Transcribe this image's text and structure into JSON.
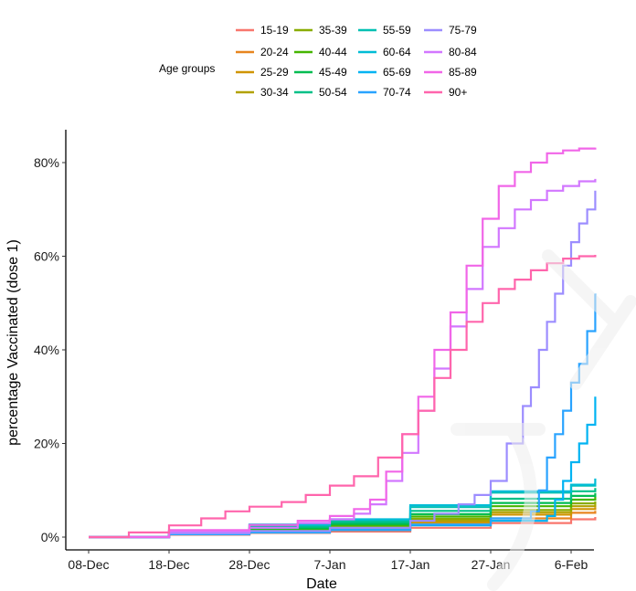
{
  "chart_data": {
    "type": "line",
    "step": true,
    "xlabel": "Date",
    "ylabel": "percentage Vaccinated (dose 1)",
    "x_ticks": [
      "08-Dec",
      "18-Dec",
      "28-Dec",
      "7-Jan",
      "17-Jan",
      "27-Jan",
      "6-Feb"
    ],
    "x_range": [
      "08-Dec",
      "09-Feb"
    ],
    "y_ticks": [
      "0%",
      "20%",
      "40%",
      "60%",
      "80%"
    ],
    "ylim": [
      0,
      88
    ],
    "grid": false,
    "legend": {
      "title": "Age groups",
      "position": "top",
      "ncol": 4
    },
    "series": [
      {
        "name": "15-19",
        "color": "#F8766D",
        "points": [
          [
            "08-Dec",
            0
          ],
          [
            "18-Dec",
            0.5
          ],
          [
            "28-Dec",
            0.9
          ],
          [
            "7-Jan",
            1.2
          ],
          [
            "17-Jan",
            2.0
          ],
          [
            "27-Jan",
            3.0
          ],
          [
            "6-Feb",
            3.8
          ],
          [
            "09-Feb",
            4.3
          ]
        ]
      },
      {
        "name": "20-24",
        "color": "#E7851E",
        "points": [
          [
            "08-Dec",
            0
          ],
          [
            "18-Dec",
            0.6
          ],
          [
            "28-Dec",
            1.1
          ],
          [
            "7-Jan",
            1.5
          ],
          [
            "17-Jan",
            2.6
          ],
          [
            "27-Jan",
            4.0
          ],
          [
            "6-Feb",
            5.2
          ],
          [
            "09-Feb",
            5.6
          ]
        ]
      },
      {
        "name": "25-29",
        "color": "#D09400",
        "points": [
          [
            "08-Dec",
            0
          ],
          [
            "18-Dec",
            0.7
          ],
          [
            "28-Dec",
            1.3
          ],
          [
            "7-Jan",
            1.8
          ],
          [
            "17-Jan",
            3.1
          ],
          [
            "27-Jan",
            4.8
          ],
          [
            "6-Feb",
            6.0
          ],
          [
            "09-Feb",
            6.4
          ]
        ]
      },
      {
        "name": "30-34",
        "color": "#B2A100",
        "points": [
          [
            "08-Dec",
            0
          ],
          [
            "18-Dec",
            0.8
          ],
          [
            "28-Dec",
            1.4
          ],
          [
            "7-Jan",
            2.0
          ],
          [
            "17-Jan",
            3.5
          ],
          [
            "27-Jan",
            5.3
          ],
          [
            "6-Feb",
            6.6
          ],
          [
            "09-Feb",
            7.0
          ]
        ]
      },
      {
        "name": "35-39",
        "color": "#89AC00",
        "points": [
          [
            "08-Dec",
            0
          ],
          [
            "18-Dec",
            0.8
          ],
          [
            "28-Dec",
            1.5
          ],
          [
            "7-Jan",
            2.2
          ],
          [
            "17-Jan",
            3.9
          ],
          [
            "27-Jan",
            5.8
          ],
          [
            "6-Feb",
            7.2
          ],
          [
            "09-Feb",
            7.6
          ]
        ]
      },
      {
        "name": "40-44",
        "color": "#45B500",
        "points": [
          [
            "08-Dec",
            0
          ],
          [
            "18-Dec",
            0.9
          ],
          [
            "28-Dec",
            1.7
          ],
          [
            "7-Jan",
            2.5
          ],
          [
            "17-Jan",
            4.4
          ],
          [
            "27-Jan",
            6.6
          ],
          [
            "6-Feb",
            8.0
          ],
          [
            "09-Feb",
            8.6
          ]
        ]
      },
      {
        "name": "45-49",
        "color": "#00BC51",
        "points": [
          [
            "08-Dec",
            0
          ],
          [
            "18-Dec",
            1.0
          ],
          [
            "28-Dec",
            1.9
          ],
          [
            "7-Jan",
            2.8
          ],
          [
            "17-Jan",
            4.9
          ],
          [
            "27-Jan",
            7.3
          ],
          [
            "6-Feb",
            8.8
          ],
          [
            "09-Feb",
            9.4
          ]
        ]
      },
      {
        "name": "50-54",
        "color": "#00C087",
        "points": [
          [
            "08-Dec",
            0
          ],
          [
            "18-Dec",
            1.1
          ],
          [
            "28-Dec",
            2.2
          ],
          [
            "7-Jan",
            3.2
          ],
          [
            "17-Jan",
            5.6
          ],
          [
            "27-Jan",
            8.2
          ],
          [
            "6-Feb",
            9.8
          ],
          [
            "09-Feb",
            10.5
          ]
        ]
      },
      {
        "name": "55-59",
        "color": "#00C0B2",
        "points": [
          [
            "08-Dec",
            0
          ],
          [
            "18-Dec",
            1.2
          ],
          [
            "28-Dec",
            2.5
          ],
          [
            "7-Jan",
            3.6
          ],
          [
            "17-Jan",
            6.4
          ],
          [
            "27-Jan",
            9.5
          ],
          [
            "6-Feb",
            11.0
          ],
          [
            "09-Feb",
            11.6
          ]
        ]
      },
      {
        "name": "60-64",
        "color": "#00BCD6",
        "points": [
          [
            "08-Dec",
            0
          ],
          [
            "18-Dec",
            1.3
          ],
          [
            "28-Dec",
            2.7
          ],
          [
            "7-Jan",
            3.8
          ],
          [
            "17-Jan",
            6.8
          ],
          [
            "27-Jan",
            9.8
          ],
          [
            "6-Feb",
            11.2
          ],
          [
            "09-Feb",
            12.5
          ]
        ]
      },
      {
        "name": "65-69",
        "color": "#00B3F2",
        "points": [
          [
            "08-Dec",
            0
          ],
          [
            "18-Dec",
            0.6
          ],
          [
            "28-Dec",
            1.0
          ],
          [
            "7-Jan",
            1.5
          ],
          [
            "17-Jan",
            2.5
          ],
          [
            "27-Jan",
            3.5
          ],
          [
            "3-Feb",
            4.5
          ],
          [
            "4-Feb",
            8
          ],
          [
            "5-Feb",
            12
          ],
          [
            "6-Feb",
            16
          ],
          [
            "7-Feb",
            20
          ],
          [
            "8-Feb",
            24
          ],
          [
            "09-Feb",
            30
          ]
        ]
      },
      {
        "name": "70-74",
        "color": "#29A3FF",
        "points": [
          [
            "08-Dec",
            0
          ],
          [
            "18-Dec",
            0.7
          ],
          [
            "28-Dec",
            1.1
          ],
          [
            "7-Jan",
            1.6
          ],
          [
            "17-Jan",
            2.7
          ],
          [
            "27-Jan",
            4.0
          ],
          [
            "1-Feb",
            5.5
          ],
          [
            "2-Feb",
            10
          ],
          [
            "3-Feb",
            17
          ],
          [
            "4-Feb",
            22
          ],
          [
            "5-Feb",
            27
          ],
          [
            "6-Feb",
            33
          ],
          [
            "7-Feb",
            37
          ],
          [
            "8-Feb",
            44
          ],
          [
            "09-Feb",
            52
          ]
        ]
      },
      {
        "name": "75-79",
        "color": "#9C8DFF",
        "points": [
          [
            "08-Dec",
            0
          ],
          [
            "18-Dec",
            0.8
          ],
          [
            "28-Dec",
            1.3
          ],
          [
            "7-Jan",
            2.0
          ],
          [
            "17-Jan",
            3.5
          ],
          [
            "20-Jan",
            5
          ],
          [
            "23-Jan",
            7
          ],
          [
            "25-Jan",
            9
          ],
          [
            "27-Jan",
            12
          ],
          [
            "29-Jan",
            20
          ],
          [
            "31-Jan",
            28
          ],
          [
            "1-Feb",
            32
          ],
          [
            "2-Feb",
            40
          ],
          [
            "3-Feb",
            46
          ],
          [
            "4-Feb",
            52
          ],
          [
            "5-Feb",
            58
          ],
          [
            "6-Feb",
            63
          ],
          [
            "7-Feb",
            67
          ],
          [
            "8-Feb",
            70
          ],
          [
            "09-Feb",
            74
          ]
        ]
      },
      {
        "name": "80-84",
        "color": "#D277FF",
        "points": [
          [
            "08-Dec",
            0
          ],
          [
            "18-Dec",
            1.2
          ],
          [
            "28-Dec",
            2.0
          ],
          [
            "3-Jan",
            3
          ],
          [
            "7-Jan",
            3.8
          ],
          [
            "10-Jan",
            5
          ],
          [
            "12-Jan",
            7
          ],
          [
            "14-Jan",
            12
          ],
          [
            "16-Jan",
            18
          ],
          [
            "18-Jan",
            27
          ],
          [
            "20-Jan",
            36
          ],
          [
            "22-Jan",
            45
          ],
          [
            "24-Jan",
            53
          ],
          [
            "26-Jan",
            62
          ],
          [
            "28-Jan",
            66
          ],
          [
            "30-Jan",
            70
          ],
          [
            "1-Feb",
            72
          ],
          [
            "3-Feb",
            74
          ],
          [
            "5-Feb",
            75
          ],
          [
            "7-Feb",
            76
          ],
          [
            "09-Feb",
            76.5
          ]
        ]
      },
      {
        "name": "85-89",
        "color": "#F166E8",
        "points": [
          [
            "08-Dec",
            0
          ],
          [
            "18-Dec",
            1.5
          ],
          [
            "28-Dec",
            2.6
          ],
          [
            "3-Jan",
            3.5
          ],
          [
            "7-Jan",
            4.5
          ],
          [
            "10-Jan",
            6
          ],
          [
            "12-Jan",
            8
          ],
          [
            "14-Jan",
            14
          ],
          [
            "16-Jan",
            22
          ],
          [
            "18-Jan",
            30
          ],
          [
            "20-Jan",
            40
          ],
          [
            "22-Jan",
            48
          ],
          [
            "24-Jan",
            58
          ],
          [
            "26-Jan",
            68
          ],
          [
            "28-Jan",
            75
          ],
          [
            "30-Jan",
            78
          ],
          [
            "1-Feb",
            80
          ],
          [
            "3-Feb",
            82
          ],
          [
            "5-Feb",
            82.6
          ],
          [
            "7-Feb",
            83
          ],
          [
            "09-Feb",
            83.2
          ]
        ]
      },
      {
        "name": "90+",
        "color": "#FF65AC",
        "points": [
          [
            "08-Dec",
            0
          ],
          [
            "13-Dec",
            1
          ],
          [
            "18-Dec",
            2.5
          ],
          [
            "22-Dec",
            4
          ],
          [
            "25-Dec",
            5.5
          ],
          [
            "28-Dec",
            6.5
          ],
          [
            "1-Jan",
            7.5
          ],
          [
            "4-Jan",
            9
          ],
          [
            "7-Jan",
            11
          ],
          [
            "10-Jan",
            13
          ],
          [
            "13-Jan",
            17
          ],
          [
            "16-Jan",
            22
          ],
          [
            "18-Jan",
            27
          ],
          [
            "20-Jan",
            34
          ],
          [
            "22-Jan",
            40
          ],
          [
            "24-Jan",
            46
          ],
          [
            "26-Jan",
            50
          ],
          [
            "28-Jan",
            53
          ],
          [
            "30-Jan",
            55
          ],
          [
            "1-Feb",
            57
          ],
          [
            "3-Feb",
            58.5
          ],
          [
            "5-Feb",
            59.5
          ],
          [
            "7-Feb",
            60
          ],
          [
            "09-Feb",
            60.3
          ]
        ]
      }
    ]
  }
}
